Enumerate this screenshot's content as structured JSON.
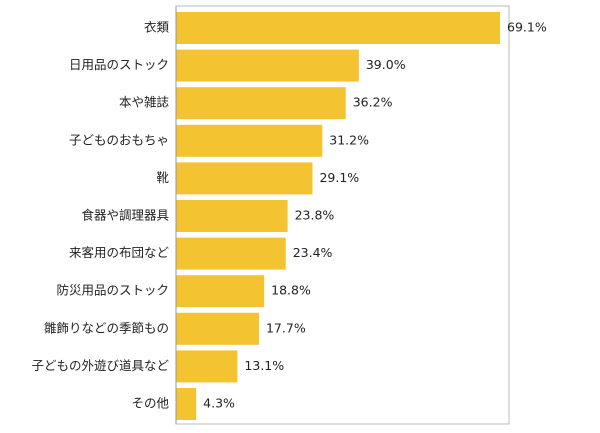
{
  "chart_data": {
    "type": "bar",
    "orientation": "horizontal",
    "categories": [
      "衣類",
      "日用品のストック",
      "本や雑誌",
      "子どものおもちゃ",
      "靴",
      "食器や調理器具",
      "来客用の布団など",
      "防災用品のストック",
      "雛飾りなどの季節もの",
      "子どもの外遊び道具など",
      "その他"
    ],
    "values": [
      69.1,
      39.0,
      36.2,
      31.2,
      29.1,
      23.8,
      23.4,
      18.8,
      17.7,
      13.1,
      4.3
    ],
    "value_labels": [
      "69.1%",
      "39.0%",
      "36.2%",
      "31.2%",
      "29.1%",
      "23.8%",
      "23.4%",
      "18.8%",
      "17.7%",
      "13.1%",
      "4.3%"
    ],
    "unit": "%",
    "xlim": [
      0,
      69.1
    ],
    "grid": false,
    "legend": "none",
    "title": "",
    "xlabel": "",
    "ylabel": "",
    "bar_color": "#F4C331",
    "axis_color": "#999999"
  }
}
